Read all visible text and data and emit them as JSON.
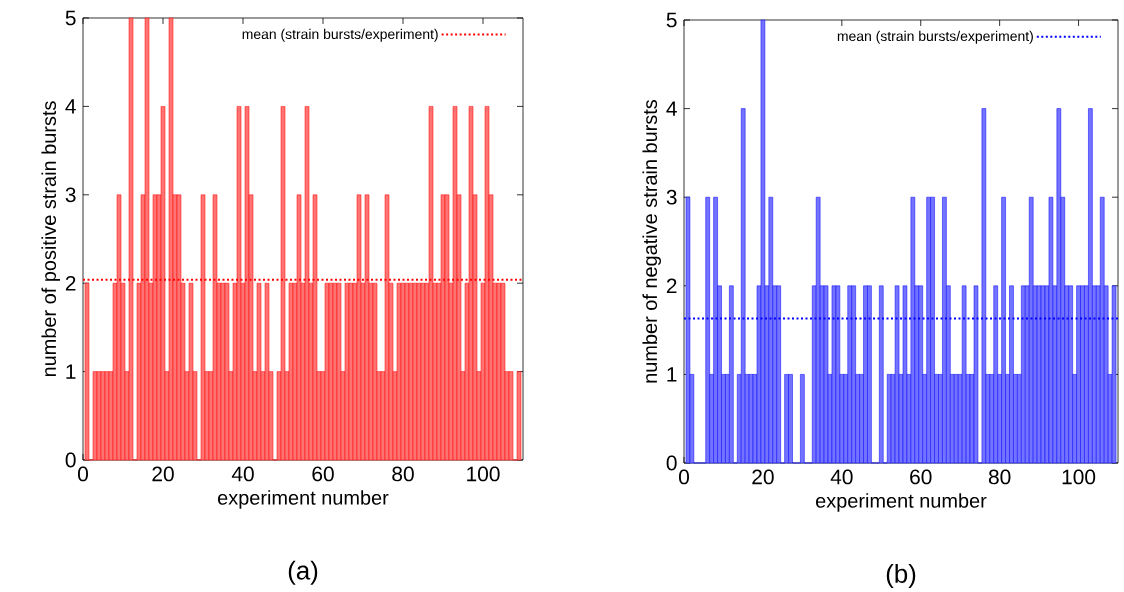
{
  "chart_data": [
    {
      "type": "bar",
      "xlabel": "experiment number",
      "ylabel": "number of positive strain bursts",
      "color": "#ff0000",
      "x": [
        1,
        2,
        3,
        4,
        5,
        6,
        7,
        8,
        9,
        10,
        11,
        12,
        13,
        14,
        15,
        16,
        17,
        18,
        19,
        20,
        21,
        22,
        23,
        24,
        25,
        26,
        27,
        28,
        29,
        30,
        31,
        32,
        33,
        34,
        35,
        36,
        37,
        38,
        39,
        40,
        41,
        42,
        43,
        44,
        45,
        46,
        47,
        48,
        49,
        50,
        51,
        52,
        53,
        54,
        55,
        56,
        57,
        58,
        59,
        60,
        61,
        62,
        63,
        64,
        65,
        66,
        67,
        68,
        69,
        70,
        71,
        72,
        73,
        74,
        75,
        76,
        77,
        78,
        79,
        80,
        81,
        82,
        83,
        84,
        85,
        86,
        87,
        88,
        89,
        90,
        91,
        92,
        93,
        94,
        95,
        96,
        97,
        98,
        99,
        100,
        101,
        102,
        103,
        104,
        105,
        106,
        107,
        108,
        109
      ],
      "values": [
        2,
        0,
        1,
        1,
        1,
        1,
        1,
        2,
        3,
        2,
        1,
        5,
        0,
        2,
        3,
        5,
        2,
        3,
        3,
        4,
        1,
        5,
        3,
        3,
        2,
        1,
        2,
        1,
        0,
        3,
        1,
        1,
        3,
        2,
        2,
        2,
        1,
        2,
        4,
        2,
        4,
        3,
        1,
        2,
        1,
        2,
        1,
        0,
        1,
        4,
        1,
        2,
        2,
        3,
        2,
        4,
        2,
        3,
        1,
        1,
        2,
        2,
        2,
        2,
        1,
        2,
        2,
        2,
        3,
        2,
        3,
        2,
        2,
        1,
        1,
        3,
        2,
        1,
        2,
        2,
        2,
        2,
        2,
        2,
        2,
        2,
        4,
        2,
        2,
        3,
        3,
        2,
        4,
        3,
        1,
        2,
        4,
        3,
        1,
        2,
        4,
        3,
        2,
        2,
        2,
        1,
        1,
        0,
        1
      ],
      "xlim": [
        0,
        110
      ],
      "ylim": [
        0,
        5
      ],
      "xticks": [
        0,
        20,
        40,
        60,
        80,
        100
      ],
      "yticks": [
        0,
        1,
        2,
        3,
        4,
        5
      ],
      "ref_lines": [
        {
          "axis": "y",
          "value": 2.04,
          "label": "mean (strain bursts/experiment)",
          "color": "#ff0000",
          "line_style": "dotted"
        }
      ],
      "legend": "top right",
      "annotations": [
        "(a)"
      ]
    },
    {
      "type": "bar",
      "xlabel": "experiment number",
      "ylabel": "number of negative strain bursts",
      "color": "#0000ff",
      "x": [
        1,
        2,
        3,
        4,
        5,
        6,
        7,
        8,
        9,
        10,
        11,
        12,
        13,
        14,
        15,
        16,
        17,
        18,
        19,
        20,
        21,
        22,
        23,
        24,
        25,
        26,
        27,
        28,
        29,
        30,
        31,
        32,
        33,
        34,
        35,
        36,
        37,
        38,
        39,
        40,
        41,
        42,
        43,
        44,
        45,
        46,
        47,
        48,
        49,
        50,
        51,
        52,
        53,
        54,
        55,
        56,
        57,
        58,
        59,
        60,
        61,
        62,
        63,
        64,
        65,
        66,
        67,
        68,
        69,
        70,
        71,
        72,
        73,
        74,
        75,
        76,
        77,
        78,
        79,
        80,
        81,
        82,
        83,
        84,
        85,
        86,
        87,
        88,
        89,
        90,
        91,
        92,
        93,
        94,
        95,
        96,
        97,
        98,
        99,
        100,
        101,
        102,
        103,
        104,
        105,
        106,
        107,
        108,
        109
      ],
      "values": [
        3,
        1,
        0,
        0,
        0,
        3,
        1,
        3,
        2,
        1,
        1,
        2,
        0,
        1,
        4,
        1,
        1,
        1,
        2,
        5,
        2,
        3,
        2,
        2,
        0,
        1,
        1,
        0,
        0,
        1,
        0,
        0,
        2,
        3,
        2,
        2,
        1,
        2,
        2,
        1,
        1,
        2,
        2,
        1,
        1,
        2,
        2,
        0,
        0,
        2,
        0,
        1,
        1,
        2,
        1,
        2,
        1,
        3,
        2,
        2,
        1,
        3,
        3,
        1,
        1,
        3,
        2,
        1,
        1,
        1,
        2,
        1,
        1,
        2,
        0,
        4,
        1,
        1,
        2,
        1,
        3,
        1,
        2,
        1,
        1,
        2,
        2,
        3,
        2,
        2,
        2,
        2,
        3,
        2,
        4,
        3,
        2,
        2,
        1,
        2,
        2,
        2,
        4,
        2,
        2,
        3,
        2,
        1,
        2
      ],
      "xlim": [
        0,
        110
      ],
      "ylim": [
        0,
        5
      ],
      "xticks": [
        0,
        20,
        40,
        60,
        80,
        100
      ],
      "yticks": [
        0,
        1,
        2,
        3,
        4,
        5
      ],
      "ref_lines": [
        {
          "axis": "y",
          "value": 1.63,
          "label": "mean (strain bursts/experiment)",
          "color": "#0000ff",
          "line_style": "dotted"
        }
      ],
      "legend": "top right",
      "annotations": [
        "(b)"
      ]
    }
  ]
}
